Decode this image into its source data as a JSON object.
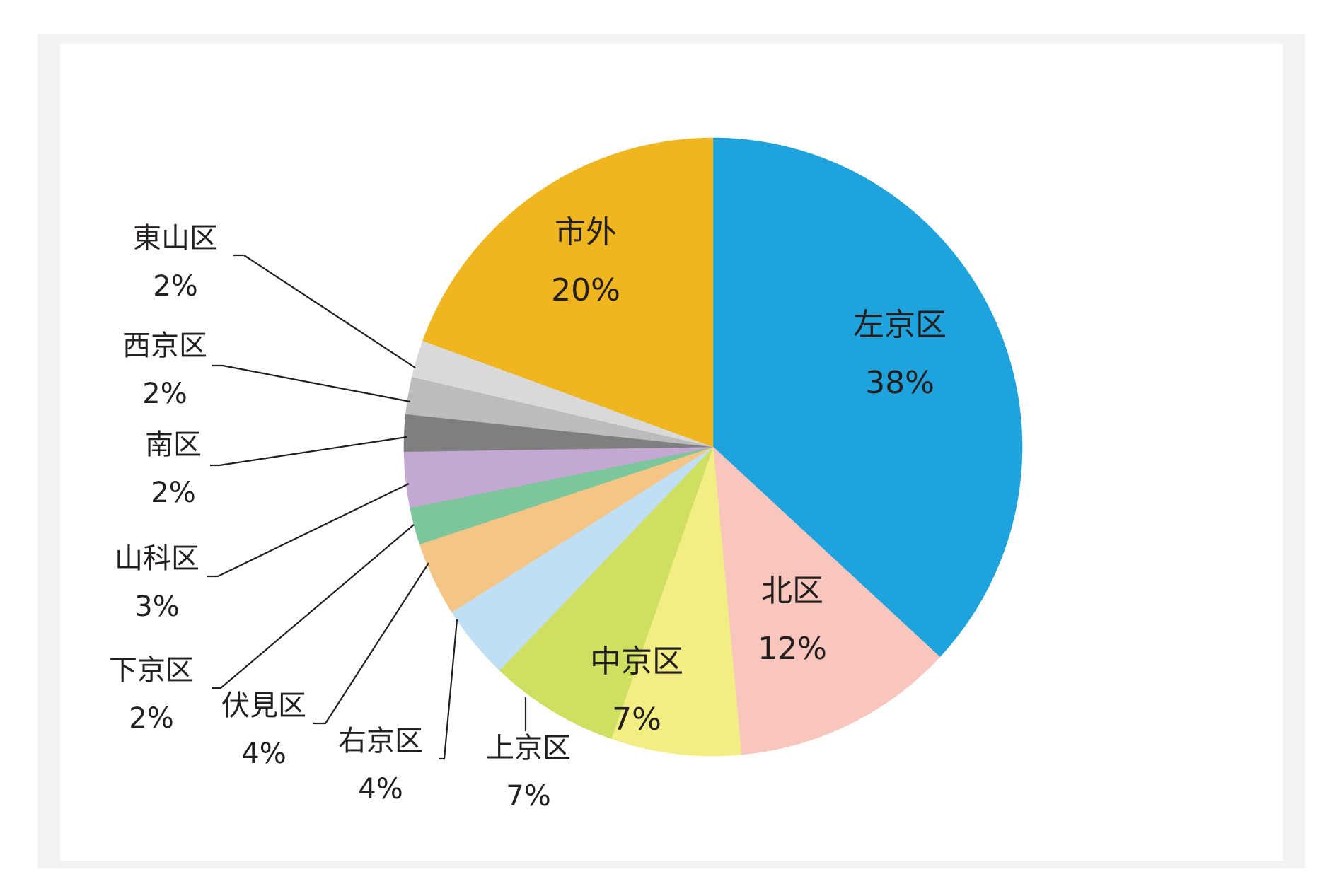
{
  "chart_data": {
    "type": "pie",
    "title": "",
    "start_angle_deg": 0,
    "direction": "clockwise",
    "slices": [
      {
        "label": "左京区",
        "value": 38,
        "value_label": "38%",
        "color": "#1fa3dd",
        "text_color": "#ffffff",
        "label_position": "inside"
      },
      {
        "label": "北区",
        "value": 12,
        "value_label": "12%",
        "color": "#f8c6bc",
        "text_color": "#231f20",
        "label_position": "inside"
      },
      {
        "label": "中京区",
        "value": 7,
        "value_label": "7%",
        "color": "#f2ee84",
        "text_color": "#231f20",
        "label_position": "inside"
      },
      {
        "label": "上京区",
        "value": 7,
        "value_label": "7%",
        "color": "#cfdf62",
        "text_color": "#231f20",
        "label_position": "outside"
      },
      {
        "label": "右京区",
        "value": 4,
        "value_label": "4%",
        "color": "#c0dff5",
        "text_color": "#231f20",
        "label_position": "outside"
      },
      {
        "label": "伏見区",
        "value": 4,
        "value_label": "4%",
        "color": "#f5c585",
        "text_color": "#231f20",
        "label_position": "outside"
      },
      {
        "label": "下京区",
        "value": 2,
        "value_label": "2%",
        "color": "#7dc69c",
        "text_color": "#231f20",
        "label_position": "outside"
      },
      {
        "label": "山科区",
        "value": 3,
        "value_label": "3%",
        "color": "#c3a8d1",
        "text_color": "#231f20",
        "label_position": "outside"
      },
      {
        "label": "南区",
        "value": 2,
        "value_label": "2%",
        "color": "#7f7f7f",
        "text_color": "#231f20",
        "label_position": "outside"
      },
      {
        "label": "西京区",
        "value": 2,
        "value_label": "2%",
        "color": "#bcbcbc",
        "text_color": "#231f20",
        "label_position": "outside"
      },
      {
        "label": "東山区",
        "value": 2,
        "value_label": "2%",
        "color": "#d9d9d9",
        "text_color": "#231f20",
        "label_position": "outside"
      },
      {
        "label": "市外",
        "value": 20,
        "value_label": "20%",
        "color": "#efb61f",
        "text_color": "#231f20",
        "label_position": "inside"
      }
    ]
  }
}
